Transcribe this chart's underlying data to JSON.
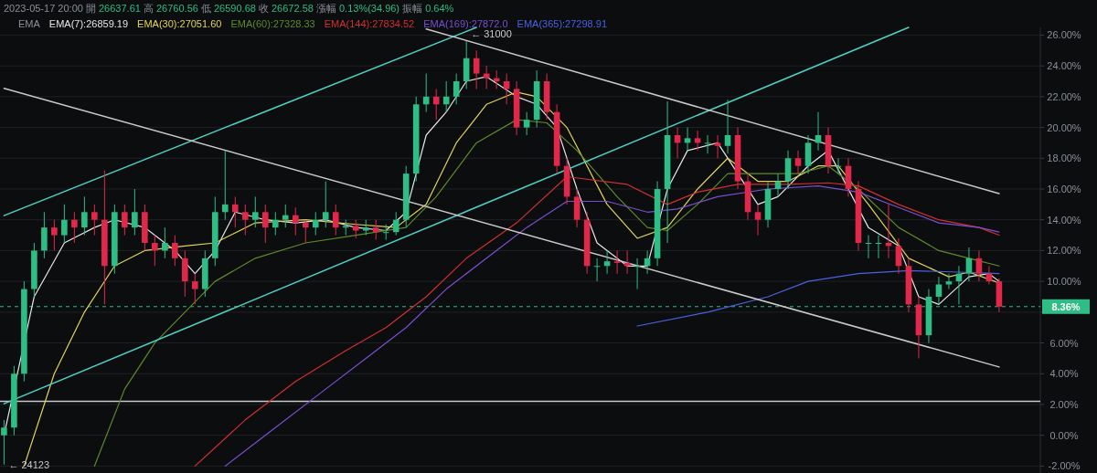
{
  "chart_data": {
    "type": "candlestick",
    "title": "2023-05-17 20:00 開 26637.61 高 26760.56 低 26590.68 收 26672.58 漲幅 0.13%(34.96) 振幅 0.64%",
    "legend_title": "EMA",
    "grid": "y",
    "tick_labels": "y",
    "categories": [
      null,
      null,
      null,
      null,
      null,
      null,
      null,
      null,
      null,
      null,
      null,
      null,
      null,
      null,
      null,
      null,
      null,
      null,
      null,
      null,
      null,
      null,
      null,
      null,
      null,
      null,
      null,
      null,
      null,
      null,
      null,
      null,
      null,
      null,
      null,
      null,
      null,
      null,
      null,
      null,
      null,
      null,
      null,
      null,
      null,
      null,
      null,
      null,
      null,
      null,
      null,
      null,
      null,
      null,
      null,
      null,
      null,
      null,
      null,
      null,
      null,
      null,
      null,
      null,
      null,
      null,
      null,
      null,
      null,
      null,
      null,
      null,
      null,
      null,
      null,
      null,
      null,
      null,
      null,
      null,
      null,
      null,
      null,
      null,
      null,
      null,
      null,
      null,
      null,
      null,
      null,
      null,
      null,
      null,
      null,
      null,
      null,
      null,
      null,
      null
    ],
    "ohlc": [
      [
        0,
        1,
        -1.9,
        0.5
      ],
      [
        0.5,
        4.5,
        0,
        4
      ],
      [
        4,
        10,
        3.5,
        9.5
      ],
      [
        9.5,
        12.5,
        9,
        12
      ],
      [
        12,
        14.5,
        11.5,
        13.5
      ],
      [
        13.5,
        14,
        12,
        13
      ],
      [
        13,
        15,
        12.5,
        14
      ],
      [
        14,
        14.5,
        12.5,
        13.5
      ],
      [
        13.5,
        15.5,
        13,
        14.5
      ],
      [
        14.5,
        15,
        13,
        14
      ],
      [
        14,
        17.2,
        8.5,
        11
      ],
      [
        11,
        15,
        10.5,
        14.5
      ],
      [
        14.5,
        15,
        13,
        13.5
      ],
      [
        13.5,
        16,
        13,
        14.5
      ],
      [
        14.5,
        15,
        12,
        12.5
      ],
      [
        12.5,
        13,
        11,
        12
      ],
      [
        12,
        13.5,
        11.5,
        12.5
      ],
      [
        12.5,
        13,
        11,
        11.5
      ],
      [
        11.5,
        12,
        9,
        10
      ],
      [
        10,
        10.5,
        8.5,
        9.5
      ],
      [
        9.5,
        12,
        9,
        11.5
      ],
      [
        11.5,
        15.5,
        11,
        14.5
      ],
      [
        14.5,
        18.5,
        14,
        15
      ],
      [
        15,
        15.5,
        13.5,
        14.5
      ],
      [
        14.5,
        15,
        13,
        14
      ],
      [
        14,
        15.5,
        13.5,
        14.5
      ],
      [
        14.5,
        15,
        12.5,
        13.5
      ],
      [
        13.5,
        14.5,
        13,
        14
      ],
      [
        14,
        15,
        13.5,
        14.3
      ],
      [
        14.3,
        14.8,
        13,
        13.8
      ],
      [
        13.8,
        14,
        12.5,
        13.5
      ],
      [
        13.5,
        14.5,
        13,
        14
      ],
      [
        14,
        16.5,
        13.5,
        14.5
      ],
      [
        14.5,
        15,
        13,
        13.5
      ],
      [
        13.5,
        14,
        13,
        13.6
      ],
      [
        13.6,
        14,
        12.8,
        13.3
      ],
      [
        13.3,
        14,
        13,
        13.5
      ],
      [
        13.5,
        14,
        12.7,
        13.2
      ],
      [
        13.2,
        13.7,
        12.7,
        13.2
      ],
      [
        13.2,
        14.5,
        13,
        14
      ],
      [
        14,
        17.5,
        13.5,
        17
      ],
      [
        17,
        22,
        16.5,
        21.5
      ],
      [
        21.5,
        23.5,
        21,
        22
      ],
      [
        22,
        22.5,
        20.5,
        21.5
      ],
      [
        21.5,
        23,
        21,
        22
      ],
      [
        22,
        23.5,
        21.5,
        23
      ],
      [
        23,
        25.6,
        22.5,
        24.5
      ],
      [
        24.5,
        25,
        22.5,
        23.5
      ],
      [
        23.5,
        24,
        22.5,
        23.2
      ],
      [
        23.2,
        23.7,
        22.5,
        23
      ],
      [
        23,
        23.5,
        21.5,
        22.5
      ],
      [
        22.5,
        23,
        19.5,
        20
      ],
      [
        20,
        21,
        19.5,
        20.5
      ],
      [
        20.5,
        23.7,
        20,
        23
      ],
      [
        23,
        23.5,
        20.5,
        21
      ],
      [
        21,
        21.5,
        17,
        17.5
      ],
      [
        17.5,
        18,
        15,
        15.5
      ],
      [
        15.5,
        16,
        13.5,
        14
      ],
      [
        14,
        14.5,
        10.5,
        11
      ],
      [
        11,
        11.5,
        10,
        11
      ],
      [
        11,
        12,
        10.5,
        11.3
      ],
      [
        11.3,
        12,
        10.5,
        11.2
      ],
      [
        11.2,
        12,
        10.5,
        11
      ],
      [
        11,
        11.5,
        9.5,
        11
      ],
      [
        11,
        12,
        10.5,
        11.5
      ],
      [
        11.5,
        16.5,
        11,
        16
      ],
      [
        16,
        21.7,
        12.5,
        19.5
      ],
      [
        19.5,
        20,
        18,
        19
      ],
      [
        19,
        20,
        18.5,
        19.3
      ],
      [
        19.3,
        19.8,
        18.5,
        19
      ],
      [
        19,
        19.5,
        18.3,
        19
      ],
      [
        19,
        19.5,
        18,
        18.8
      ],
      [
        18.8,
        21.8,
        18.3,
        19.5
      ],
      [
        19.5,
        20,
        16,
        16.5
      ],
      [
        16.5,
        17,
        14,
        14.5
      ],
      [
        14.5,
        15,
        13,
        14
      ],
      [
        14,
        16.5,
        13.5,
        16
      ],
      [
        16,
        17,
        15.5,
        16.5
      ],
      [
        16.5,
        18.5,
        16,
        18
      ],
      [
        18,
        18.5,
        17,
        17.5
      ],
      [
        17.5,
        19.5,
        17,
        19
      ],
      [
        19,
        21,
        18.5,
        19.5
      ],
      [
        19.5,
        20,
        17,
        17.5
      ],
      [
        17.5,
        18,
        17,
        17.5
      ],
      [
        17.5,
        18,
        15.5,
        16
      ],
      [
        16,
        16.5,
        12,
        12.5
      ],
      [
        12.5,
        13,
        11.5,
        12.5
      ],
      [
        12.5,
        13,
        11.5,
        12.5
      ],
      [
        12.5,
        15,
        11.5,
        12.3
      ],
      [
        12.3,
        12.8,
        10.5,
        11
      ],
      [
        11,
        11.5,
        8,
        8.5
      ],
      [
        8.5,
        9,
        5,
        6.5
      ],
      [
        6.5,
        9.5,
        6,
        9
      ],
      [
        9,
        10.3,
        8.5,
        9.8
      ],
      [
        9.8,
        10.5,
        9.5,
        10
      ],
      [
        10,
        11,
        8.5,
        10.5
      ],
      [
        10.5,
        12.2,
        10,
        11.5
      ],
      [
        11.5,
        12,
        10,
        10.5
      ],
      [
        10.5,
        11,
        9.8,
        10
      ],
      [
        10,
        10.2,
        8,
        8.36
      ]
    ],
    "series": [
      {
        "type": "line",
        "name": "EMA(7):26859.19",
        "color": "#e6e6e6",
        "values": [
          0,
          null,
          null,
          9,
          null,
          null,
          12.5,
          null,
          null,
          13.5,
          null,
          14,
          null,
          null,
          13.5,
          null,
          null,
          12,
          null,
          10.5,
          null,
          12,
          null,
          14.5,
          null,
          null,
          14,
          null,
          null,
          13.8,
          null,
          null,
          14,
          null,
          null,
          13.5,
          null,
          null,
          13.3,
          null,
          14.5,
          null,
          19.5,
          null,
          21,
          null,
          23,
          null,
          23.3,
          null,
          null,
          22,
          null,
          21.5,
          null,
          20,
          null,
          16,
          null,
          12.5,
          null,
          null,
          11,
          null,
          11,
          null,
          16,
          null,
          18.5,
          null,
          null,
          19,
          null,
          null,
          null,
          15,
          null,
          15.5,
          null,
          null,
          17.5,
          null,
          18.5,
          null,
          null,
          null,
          13.5,
          null,
          null,
          12.3,
          null,
          9,
          null,
          8.5,
          null,
          null,
          10.3,
          null,
          10.5,
          10
        ]
      },
      {
        "type": "line",
        "name": "EMA(30):27051.60",
        "color": "#e3d35a",
        "values": [
          null,
          null,
          -2,
          null,
          null,
          4,
          null,
          null,
          8,
          null,
          null,
          11,
          null,
          null,
          12,
          null,
          null,
          null,
          12.3,
          null,
          null,
          12.5,
          null,
          null,
          null,
          13.8,
          null,
          null,
          null,
          null,
          14,
          null,
          null,
          null,
          null,
          13.7,
          null,
          null,
          null,
          13.5,
          null,
          null,
          15,
          null,
          null,
          19,
          null,
          null,
          21.5,
          null,
          null,
          22.3,
          null,
          22,
          null,
          null,
          20,
          null,
          null,
          null,
          15,
          null,
          null,
          12.8,
          null,
          null,
          13.5,
          null,
          null,
          16,
          null,
          null,
          18,
          null,
          null,
          16.5,
          null,
          null,
          16.5,
          null,
          null,
          17.5,
          null,
          17.5,
          null,
          null,
          15,
          null,
          null,
          null,
          11.5,
          null,
          null,
          null,
          10.3,
          null,
          10.6,
          null,
          null,
          9.9
        ]
      },
      {
        "type": "line",
        "name": "EMA(60):27328.33",
        "color": "#5e8a2b",
        "values": [
          null,
          null,
          null,
          null,
          null,
          null,
          null,
          null,
          null,
          -2,
          null,
          null,
          3,
          null,
          null,
          6,
          null,
          null,
          8,
          null,
          null,
          10,
          null,
          null,
          null,
          11.5,
          null,
          null,
          null,
          null,
          12.5,
          null,
          null,
          null,
          null,
          13,
          null,
          null,
          null,
          null,
          13.5,
          null,
          null,
          15.5,
          null,
          null,
          null,
          19,
          null,
          null,
          null,
          20.5,
          null,
          null,
          20.3,
          null,
          null,
          18.5,
          null,
          null,
          null,
          15.5,
          null,
          null,
          13.5,
          null,
          13.3,
          null,
          null,
          15,
          null,
          null,
          17,
          null,
          null,
          17,
          null,
          null,
          null,
          17,
          null,
          null,
          17.5,
          null,
          null,
          16,
          null,
          null,
          null,
          13.5,
          null,
          null,
          null,
          12,
          null,
          null,
          11.5,
          null,
          null,
          11
        ]
      },
      {
        "type": "line",
        "name": "EMA(144):27834.52",
        "color": "#d0302f",
        "values": [
          null,
          null,
          null,
          null,
          null,
          null,
          null,
          null,
          null,
          null,
          null,
          null,
          null,
          null,
          null,
          null,
          null,
          null,
          null,
          -2,
          null,
          null,
          null,
          null,
          1,
          null,
          null,
          null,
          null,
          3.5,
          null,
          null,
          null,
          null,
          5.5,
          null,
          null,
          null,
          7,
          null,
          null,
          null,
          9,
          null,
          null,
          null,
          11.5,
          null,
          null,
          null,
          null,
          13.8,
          null,
          null,
          null,
          null,
          16.8,
          null,
          null,
          null,
          null,
          null,
          16.3,
          null,
          null,
          null,
          15,
          null,
          null,
          15.8,
          null,
          null,
          null,
          16.3,
          null,
          null,
          null,
          null,
          16.3,
          null,
          null,
          null,
          16.4,
          null,
          null,
          16.2,
          null,
          null,
          null,
          15,
          null,
          null,
          null,
          14,
          null,
          null,
          null,
          13.5,
          null,
          13
        ]
      },
      {
        "type": "line",
        "name": "EMA(169):27872.0",
        "color": "#7a4fd0",
        "values": [
          null,
          null,
          null,
          null,
          null,
          null,
          null,
          null,
          null,
          null,
          null,
          null,
          null,
          null,
          null,
          null,
          null,
          null,
          null,
          null,
          null,
          null,
          -2,
          null,
          null,
          null,
          null,
          0.5,
          null,
          null,
          null,
          null,
          3,
          null,
          null,
          null,
          5,
          null,
          null,
          null,
          7,
          null,
          null,
          null,
          9.5,
          null,
          null,
          null,
          11.5,
          null,
          null,
          null,
          13.5,
          null,
          null,
          null,
          15.2,
          null,
          null,
          null,
          15.2,
          null,
          null,
          null,
          14.5,
          null,
          null,
          14.7,
          null,
          null,
          null,
          15.5,
          null,
          null,
          null,
          null,
          16,
          null,
          null,
          null,
          null,
          16.2,
          null,
          null,
          null,
          15.8,
          null,
          null,
          null,
          14.8,
          null,
          null,
          null,
          13.8,
          null,
          null,
          null,
          13.5,
          null,
          13.2
        ]
      },
      {
        "type": "line",
        "name": "EMA(365):27298.91",
        "color": "#4a62e0",
        "values": [
          null,
          null,
          null,
          null,
          null,
          null,
          null,
          null,
          null,
          null,
          null,
          null,
          null,
          null,
          null,
          null,
          null,
          null,
          null,
          null,
          null,
          null,
          null,
          null,
          null,
          null,
          null,
          null,
          null,
          null,
          null,
          null,
          null,
          null,
          null,
          null,
          null,
          null,
          null,
          null,
          null,
          null,
          null,
          null,
          null,
          null,
          null,
          null,
          null,
          null,
          null,
          null,
          null,
          null,
          null,
          null,
          null,
          null,
          null,
          null,
          null,
          null,
          null,
          7.1,
          null,
          null,
          null,
          null,
          null,
          null,
          8,
          null,
          null,
          null,
          null,
          null,
          9,
          null,
          null,
          null,
          10,
          null,
          null,
          null,
          null,
          10.5,
          null,
          null,
          null,
          null,
          10.7,
          null,
          null,
          null,
          null,
          10.6,
          null,
          null,
          null,
          10.5
        ]
      },
      {
        "type": "line",
        "color": "#4fd1c5",
        "values": [
          14.27,
          null,
          null,
          null,
          null,
          null,
          null,
          null,
          null,
          null,
          null,
          null,
          null,
          null,
          null,
          null,
          null,
          null,
          null,
          null,
          null,
          null,
          null,
          null,
          null,
          null,
          null,
          null,
          null,
          null,
          null,
          null,
          null,
          null,
          null,
          null,
          null,
          null,
          null,
          null,
          null,
          null,
          null,
          null,
          null,
          null,
          null,
          26.5,
          null,
          null,
          null,
          null,
          null,
          null,
          null,
          null,
          null,
          null,
          null,
          null,
          null,
          null,
          null,
          null,
          null,
          null,
          null,
          null,
          null,
          null,
          null,
          null,
          null,
          null,
          null,
          null,
          null,
          null,
          null,
          null,
          null,
          null,
          null,
          null,
          null,
          null,
          null,
          null,
          null,
          null,
          null,
          null,
          null,
          null,
          null,
          null,
          null,
          null,
          null,
          null
        ]
      },
      {
        "type": "line",
        "color": "#4fd1c5",
        "values": [
          2.05,
          null,
          null,
          null,
          null,
          null,
          null,
          null,
          null,
          null,
          null,
          null,
          null,
          null,
          null,
          null,
          null,
          null,
          null,
          null,
          null,
          null,
          null,
          null,
          null,
          null,
          null,
          null,
          null,
          null,
          null,
          null,
          null,
          null,
          null,
          null,
          null,
          null,
          null,
          null,
          null,
          null,
          null,
          null,
          null,
          null,
          null,
          null,
          null,
          null,
          null,
          null,
          null,
          null,
          null,
          null,
          null,
          null,
          null,
          null,
          null,
          null,
          null,
          null,
          null,
          null,
          null,
          null,
          null,
          null,
          null,
          null,
          null,
          null,
          null,
          null,
          null,
          null,
          null,
          null,
          null,
          null,
          null,
          null,
          null,
          null,
          null,
          null,
          null,
          null,
          26.5,
          null,
          null,
          null,
          null,
          null,
          null,
          null,
          null,
          null
        ]
      },
      {
        "type": "line",
        "color": "#c8c8c8",
        "values": [
          22.54,
          null,
          null,
          null,
          null,
          null,
          null,
          null,
          null,
          null,
          null,
          null,
          null,
          null,
          null,
          null,
          null,
          null,
          null,
          null,
          null,
          null,
          null,
          null,
          null,
          null,
          null,
          null,
          null,
          null,
          null,
          null,
          null,
          null,
          null,
          null,
          null,
          null,
          null,
          null,
          null,
          null,
          null,
          null,
          null,
          null,
          null,
          null,
          null,
          null,
          null,
          null,
          null,
          null,
          null,
          null,
          null,
          null,
          null,
          null,
          null,
          null,
          null,
          null,
          null,
          null,
          null,
          null,
          null,
          null,
          null,
          null,
          null,
          null,
          null,
          null,
          null,
          null,
          null,
          null,
          null,
          null,
          null,
          null,
          null,
          null,
          null,
          null,
          null,
          null,
          null,
          null,
          null,
          null,
          null,
          null,
          null,
          null,
          null,
          4.44
        ]
      },
      {
        "type": "line",
        "color": "#c8c8c8",
        "values": [
          null,
          null,
          null,
          null,
          null,
          null,
          null,
          null,
          null,
          null,
          null,
          null,
          null,
          null,
          null,
          null,
          null,
          null,
          null,
          null,
          null,
          null,
          null,
          null,
          null,
          null,
          null,
          null,
          null,
          null,
          null,
          null,
          null,
          null,
          null,
          null,
          null,
          null,
          null,
          null,
          null,
          null,
          26.4,
          null,
          null,
          null,
          null,
          null,
          null,
          null,
          null,
          null,
          null,
          null,
          null,
          null,
          null,
          null,
          null,
          null,
          null,
          null,
          null,
          null,
          null,
          null,
          null,
          null,
          null,
          null,
          null,
          null,
          null,
          null,
          null,
          null,
          null,
          null,
          null,
          null,
          null,
          null,
          null,
          null,
          null,
          null,
          null,
          null,
          null,
          null,
          null,
          null,
          null,
          null,
          null,
          null,
          null,
          null,
          null,
          15.7
        ]
      }
    ],
    "ylim": [
      -2.45,
      26.5
    ],
    "yticks": [
      {
        "value": -2,
        "label": "-2.00%"
      },
      {
        "value": 0,
        "label": "0.00%"
      },
      {
        "value": 2,
        "label": "2.00%"
      },
      {
        "value": 4,
        "label": "4.00%"
      },
      {
        "value": 6,
        "label": "6.00%"
      },
      {
        "value": 8,
        "label": null
      },
      {
        "value": 10,
        "label": "10.00%"
      },
      {
        "value": 12,
        "label": "12.00%"
      },
      {
        "value": 14,
        "label": "14.00%"
      },
      {
        "value": 16,
        "label": "16.00%"
      },
      {
        "value": 18,
        "label": "18.00%"
      },
      {
        "value": 20,
        "label": "20.00%"
      },
      {
        "value": 22,
        "label": "22.00%"
      },
      {
        "value": 24,
        "label": "24.00%"
      },
      {
        "value": 26,
        "label": "26.00%"
      }
    ],
    "ref_lines": [
      {
        "axis": "y",
        "value": 8.36,
        "label": "8.36%",
        "color": "#2ebd85",
        "line_style": "dashed"
      },
      {
        "axis": "y",
        "value": 2.2,
        "color": "#c8c8c8",
        "line_style": "solid"
      }
    ],
    "annotations": [
      "← 31000",
      "← 24123"
    ]
  }
}
